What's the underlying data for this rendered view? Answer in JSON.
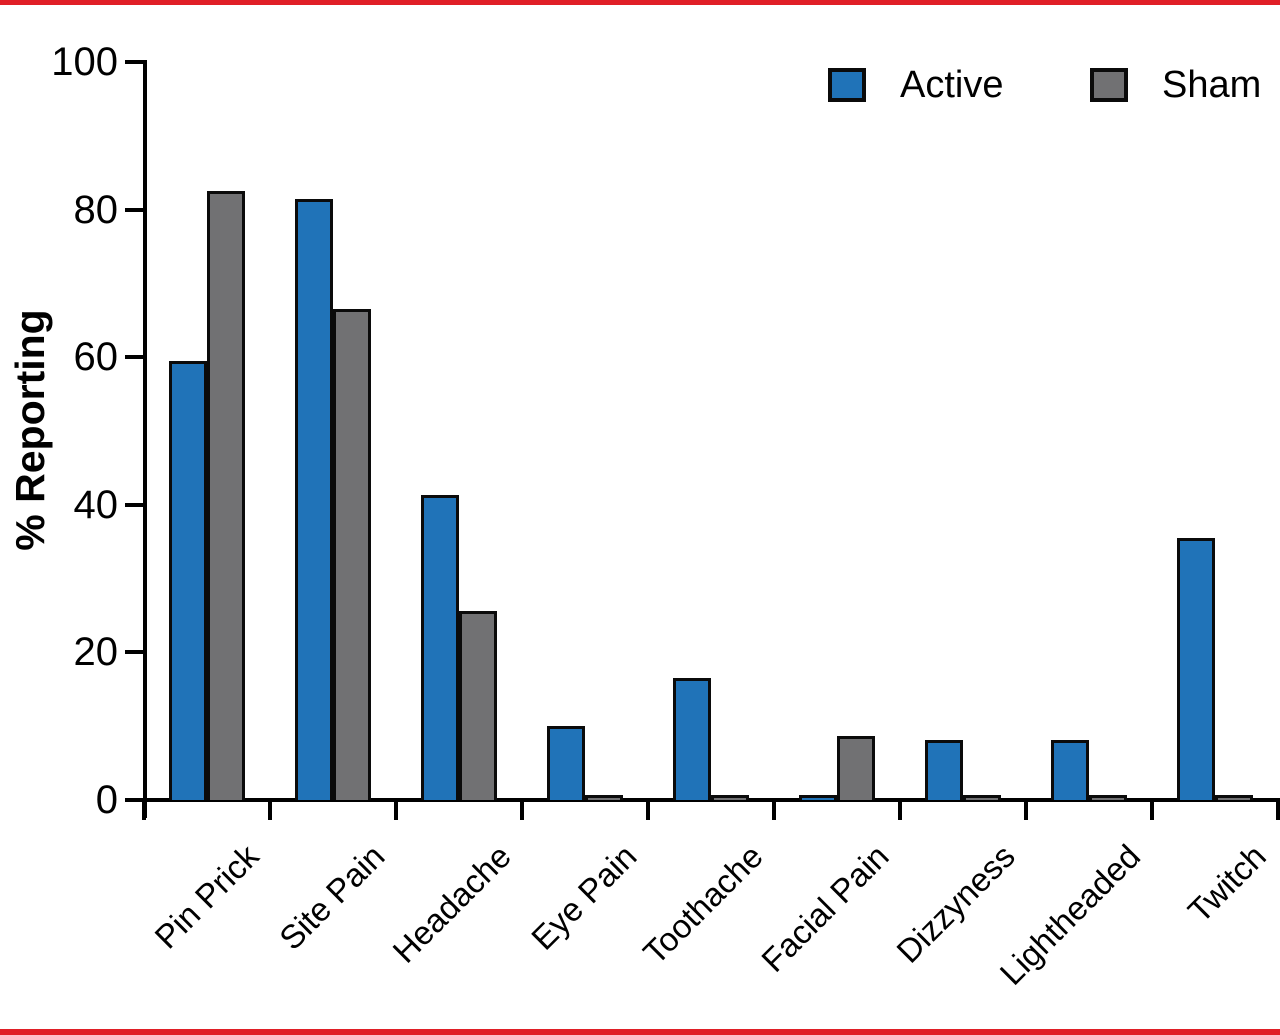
{
  "frame": {
    "border_color": "#e01f27",
    "background": "#ffffff"
  },
  "chart_data": {
    "type": "bar",
    "title": "",
    "xlabel": "",
    "ylabel": "% Reporting",
    "ylim": [
      0,
      100
    ],
    "yticks": [
      0,
      20,
      40,
      60,
      80,
      100
    ],
    "grid": false,
    "legend_position": "top-right",
    "bar_outline_color": "#0b0b0b",
    "categories": [
      "Pin Prick",
      "Site Pain",
      "Headache",
      "Eye Pain",
      "Toothache",
      "Facial Pain",
      "Dizzyness",
      "Lightheaded",
      "Twitch"
    ],
    "series": [
      {
        "name": "Active",
        "color": "#2073b8",
        "values": [
          59.5,
          81.5,
          41.3,
          10.0,
          16.5,
          0.7,
          8.1,
          8.1,
          35.5
        ]
      },
      {
        "name": "Sham",
        "color": "#717173",
        "values": [
          82.5,
          66.5,
          25.6,
          0.7,
          0.7,
          8.7,
          0.7,
          0.7,
          0.7
        ]
      }
    ]
  }
}
